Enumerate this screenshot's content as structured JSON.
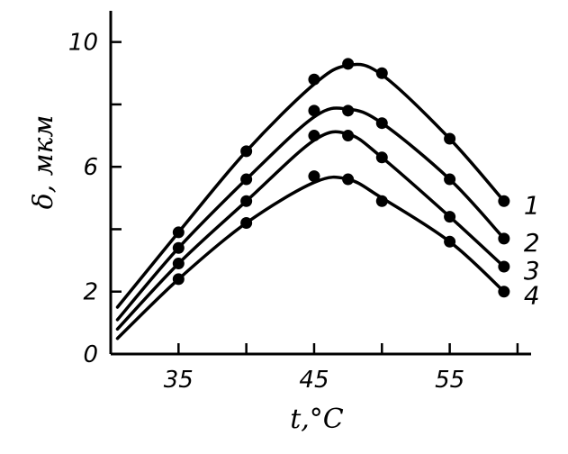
{
  "chart_data": {
    "type": "line",
    "xlabel": "t,°C",
    "ylabel": "δ, мкм",
    "xlim": [
      30,
      61
    ],
    "ylim": [
      0,
      11
    ],
    "x_ticks": [
      {
        "value": 35,
        "label": "35"
      },
      {
        "value": 40,
        "label": ""
      },
      {
        "value": 45,
        "label": "45"
      },
      {
        "value": 50,
        "label": ""
      },
      {
        "value": 55,
        "label": "55"
      },
      {
        "value": 60,
        "label": ""
      }
    ],
    "y_ticks": [
      {
        "value": 0,
        "label": "0"
      },
      {
        "value": 2,
        "label": "2"
      },
      {
        "value": 4,
        "label": ""
      },
      {
        "value": 6,
        "label": "6"
      },
      {
        "value": 8,
        "label": ""
      },
      {
        "value": 10,
        "label": "10"
      }
    ],
    "grid": false,
    "legend": "none",
    "series": [
      {
        "name": "1",
        "x": [
          35,
          40,
          45,
          47.5,
          50,
          55,
          59
        ],
        "y": [
          3.9,
          6.5,
          8.8,
          9.3,
          9.0,
          6.9,
          4.9
        ],
        "curve": [
          [
            30.5,
            1.5
          ],
          [
            35,
            3.9
          ],
          [
            40,
            6.5
          ],
          [
            45,
            8.65
          ],
          [
            47.5,
            9.25
          ],
          [
            50,
            8.95
          ],
          [
            55,
            6.9
          ],
          [
            59,
            4.9
          ]
        ]
      },
      {
        "name": "2",
        "x": [
          35,
          40,
          45,
          47.5,
          50,
          55,
          59
        ],
        "y": [
          3.4,
          5.6,
          7.8,
          7.8,
          7.4,
          5.6,
          3.7
        ],
        "curve": [
          [
            30.5,
            1.1
          ],
          [
            35,
            3.4
          ],
          [
            40,
            5.6
          ],
          [
            45,
            7.6
          ],
          [
            47.5,
            7.85
          ],
          [
            50,
            7.4
          ],
          [
            55,
            5.6
          ],
          [
            59,
            3.7
          ]
        ]
      },
      {
        "name": "3",
        "x": [
          35,
          40,
          45,
          47.5,
          50,
          55,
          59
        ],
        "y": [
          2.9,
          4.9,
          7.0,
          7.0,
          6.3,
          4.4,
          2.8
        ],
        "curve": [
          [
            30.5,
            0.8
          ],
          [
            35,
            2.9
          ],
          [
            40,
            4.9
          ],
          [
            45,
            6.85
          ],
          [
            47.5,
            7.05
          ],
          [
            50,
            6.3
          ],
          [
            55,
            4.4
          ],
          [
            59,
            2.8
          ]
        ]
      },
      {
        "name": "4",
        "x": [
          35,
          40,
          45,
          47.5,
          50,
          55,
          59
        ],
        "y": [
          2.4,
          4.2,
          5.7,
          5.6,
          4.9,
          3.6,
          2.0
        ],
        "curve": [
          [
            30.5,
            0.5
          ],
          [
            35,
            2.4
          ],
          [
            40,
            4.2
          ],
          [
            45,
            5.5
          ],
          [
            47.5,
            5.6
          ],
          [
            50,
            5.0
          ],
          [
            55,
            3.6
          ],
          [
            59,
            2.0
          ]
        ]
      }
    ]
  }
}
